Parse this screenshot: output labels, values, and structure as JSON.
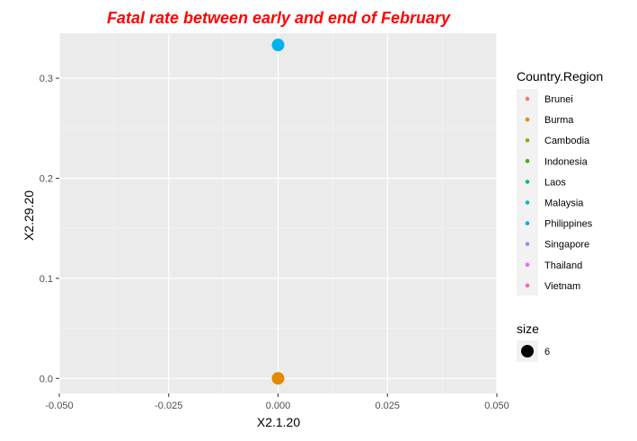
{
  "chart_data": {
    "type": "scatter",
    "title": "Fatal rate between early and end of February",
    "title_color": "#ff0000",
    "xlabel": "X2.1.20",
    "ylabel": "X2.29.20",
    "xlim": [
      -0.05,
      0.05
    ],
    "ylim": [
      -0.015,
      0.345
    ],
    "x_ticks": [
      -0.05,
      -0.025,
      0.0,
      0.025,
      0.05
    ],
    "x_tick_labels": [
      "-0.050",
      "-0.025",
      "0.000",
      "0.025",
      "0.050"
    ],
    "y_ticks": [
      0.0,
      0.1,
      0.2,
      0.3
    ],
    "y_tick_labels": [
      "0.0",
      "0.1",
      "0.2",
      "0.3"
    ],
    "grid": true,
    "panel_background": "#ebebeb",
    "points": [
      {
        "series": "Burma",
        "x": 0.0,
        "y": 0.0,
        "color": "#E18A00"
      },
      {
        "series": "Philippines",
        "x": 0.0,
        "y": 0.3333,
        "color": "#00B3F0"
      }
    ],
    "legend_position": "right",
    "legend_color_title": "Country.Region",
    "legend_color_entries": [
      {
        "name": "Brunei",
        "color": "#F8766D"
      },
      {
        "name": "Burma",
        "color": "#D89000"
      },
      {
        "name": "Cambodia",
        "color": "#A3A500"
      },
      {
        "name": "Indonesia",
        "color": "#39B600"
      },
      {
        "name": "Laos",
        "color": "#00BF7D"
      },
      {
        "name": "Malaysia",
        "color": "#00BFC4"
      },
      {
        "name": "Philippines",
        "color": "#00B0F6"
      },
      {
        "name": "Singapore",
        "color": "#9590FF"
      },
      {
        "name": "Thailand",
        "color": "#E76BF3"
      },
      {
        "name": "Vietnam",
        "color": "#FF62BC"
      }
    ],
    "legend_size_title": "size",
    "legend_size_entries": [
      {
        "label": "6",
        "color": "#000000"
      }
    ]
  }
}
